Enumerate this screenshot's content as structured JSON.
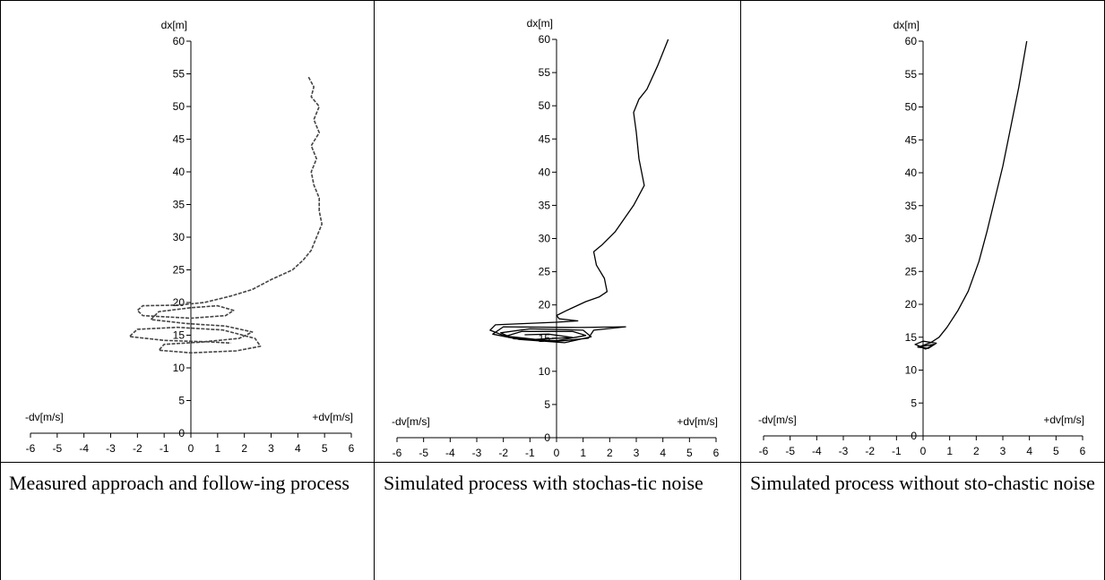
{
  "panels": [
    {
      "caption": "Measured approach and follow-ing process",
      "chart_data": {
        "type": "line",
        "title": "",
        "xlabel_left": "-dv[m/s]",
        "xlabel_right": "+dv[m/s]",
        "ylabel": "dx[m]",
        "xlim": [
          -6,
          6
        ],
        "ylim": [
          0,
          60
        ],
        "xticks": [
          "-6",
          "-5",
          "-4",
          "-3",
          "-2",
          "-1",
          "0",
          "1",
          "2",
          "3",
          "4",
          "5",
          "6"
        ],
        "yticks": [
          "0",
          "5",
          "10",
          "15",
          "20",
          "25",
          "30",
          "35",
          "40",
          "45",
          "50",
          "55",
          "60"
        ],
        "series": [
          {
            "style": "jagged-dashed",
            "points": [
              [
                4.4,
                54.5
              ],
              [
                4.6,
                53.0
              ],
              [
                4.5,
                51.5
              ],
              [
                4.8,
                50.0
              ],
              [
                4.6,
                48.0
              ],
              [
                4.8,
                46.0
              ],
              [
                4.5,
                44.0
              ],
              [
                4.7,
                42.0
              ],
              [
                4.5,
                40.0
              ],
              [
                4.6,
                38.0
              ],
              [
                4.8,
                36.0
              ],
              [
                4.8,
                34.0
              ],
              [
                4.9,
                32.0
              ],
              [
                4.7,
                30.0
              ],
              [
                4.5,
                28.0
              ],
              [
                4.2,
                26.5
              ],
              [
                3.8,
                25.0
              ],
              [
                3.0,
                23.5
              ],
              [
                2.3,
                22.0
              ],
              [
                1.5,
                21.0
              ],
              [
                0.5,
                20.0
              ],
              [
                -0.5,
                19.6
              ],
              [
                -1.8,
                19.5
              ],
              [
                -2.0,
                18.8
              ],
              [
                -1.8,
                18.0
              ],
              [
                0.0,
                17.6
              ],
              [
                1.3,
                18.0
              ],
              [
                1.6,
                18.8
              ],
              [
                1.0,
                19.5
              ],
              [
                0.0,
                19.2
              ],
              [
                -1.2,
                18.6
              ],
              [
                -1.5,
                17.4
              ],
              [
                -0.2,
                16.8
              ],
              [
                1.3,
                16.4
              ],
              [
                2.3,
                15.5
              ],
              [
                1.8,
                14.5
              ],
              [
                0.5,
                14.0
              ],
              [
                -1.0,
                14.2
              ],
              [
                -2.3,
                14.8
              ],
              [
                -2.0,
                15.9
              ],
              [
                -0.5,
                16.2
              ],
              [
                1.2,
                15.8
              ],
              [
                2.4,
                14.5
              ],
              [
                2.6,
                13.3
              ],
              [
                1.7,
                12.6
              ],
              [
                0.0,
                12.3
              ],
              [
                -1.2,
                12.7
              ],
              [
                -1.0,
                13.6
              ],
              [
                0.6,
                14.0
              ],
              [
                1.5,
                13.8
              ]
            ]
          }
        ]
      }
    },
    {
      "caption": "Simulated process with stochas-tic noise",
      "chart_data": {
        "type": "line",
        "title": "",
        "xlabel_left": "-dv[m/s]",
        "xlabel_right": "+dv[m/s]",
        "ylabel": "dx[m]",
        "xlim": [
          -6,
          6
        ],
        "ylim": [
          0,
          60
        ],
        "xticks": [
          "-6",
          "-5",
          "-4",
          "-3",
          "-2",
          "-1",
          "0",
          "1",
          "2",
          "3",
          "4",
          "5",
          "6"
        ],
        "yticks": [
          "0",
          "5",
          "10",
          "15",
          "20",
          "25",
          "30",
          "35",
          "40",
          "45",
          "50",
          "55",
          "60"
        ],
        "series": [
          {
            "style": "solid",
            "points": [
              [
                4.2,
                60.0
              ],
              [
                3.8,
                56.0
              ],
              [
                3.4,
                52.5
              ],
              [
                3.1,
                51.0
              ],
              [
                2.9,
                49.0
              ],
              [
                3.0,
                46.0
              ],
              [
                3.1,
                42.0
              ],
              [
                3.3,
                38.0
              ],
              [
                2.9,
                35.0
              ],
              [
                2.2,
                31.0
              ],
              [
                1.7,
                29.0
              ],
              [
                1.4,
                28.0
              ],
              [
                1.5,
                26.0
              ],
              [
                1.8,
                24.0
              ],
              [
                1.9,
                22.0
              ],
              [
                1.6,
                21.2
              ],
              [
                1.1,
                20.5
              ],
              [
                0.4,
                19.2
              ],
              [
                0.0,
                18.4
              ],
              [
                0.1,
                17.9
              ],
              [
                0.8,
                17.6
              ],
              [
                0.0,
                17.4
              ],
              [
                -2.3,
                17.0
              ],
              [
                -2.5,
                16.2
              ],
              [
                -1.8,
                15.1
              ],
              [
                0.0,
                14.5
              ],
              [
                1.2,
                15.0
              ],
              [
                1.4,
                16.2
              ],
              [
                2.6,
                16.7
              ],
              [
                0.8,
                16.6
              ],
              [
                -2.0,
                16.7
              ],
              [
                -2.4,
                15.6
              ],
              [
                -1.4,
                14.8
              ],
              [
                0.3,
                14.3
              ],
              [
                1.3,
                15.2
              ],
              [
                1.0,
                16.2
              ],
              [
                -1.0,
                16.4
              ],
              [
                -2.1,
                15.8
              ],
              [
                -1.6,
                14.9
              ],
              [
                0.0,
                14.6
              ],
              [
                1.1,
                15.4
              ],
              [
                0.6,
                16.0
              ],
              [
                -1.3,
                16.0
              ],
              [
                -1.9,
                15.3
              ],
              [
                -0.8,
                14.8
              ],
              [
                0.6,
                15.1
              ],
              [
                -0.3,
                15.6
              ],
              [
                -1.2,
                15.5
              ]
            ]
          }
        ]
      }
    },
    {
      "caption": "Simulated process without sto-chastic noise",
      "chart_data": {
        "type": "line",
        "title": "",
        "xlabel_left": "-dv[m/s]",
        "xlabel_right": "+dv[m/s]",
        "ylabel": "dx[m]",
        "xlim": [
          -6,
          6
        ],
        "ylim": [
          0,
          60
        ],
        "xticks": [
          "-6",
          "-5",
          "-4",
          "-3",
          "-2",
          "-1",
          "0",
          "1",
          "2",
          "3",
          "4",
          "5",
          "6"
        ],
        "yticks": [
          "0",
          "5",
          "10",
          "15",
          "20",
          "25",
          "30",
          "35",
          "40",
          "45",
          "50",
          "55",
          "60"
        ],
        "series": [
          {
            "style": "solid",
            "points": [
              [
                3.9,
                60.0
              ],
              [
                3.6,
                53.0
              ],
              [
                3.3,
                47.0
              ],
              [
                3.0,
                41.0
              ],
              [
                2.7,
                36.0
              ],
              [
                2.4,
                31.0
              ],
              [
                2.1,
                26.5
              ],
              [
                1.7,
                22.0
              ],
              [
                1.3,
                19.0
              ],
              [
                0.9,
                16.5
              ],
              [
                0.6,
                15.0
              ],
              [
                0.3,
                14.2
              ],
              [
                -0.1,
                13.6
              ],
              [
                -0.3,
                13.9
              ],
              [
                0.0,
                14.4
              ],
              [
                0.5,
                14.1
              ],
              [
                0.2,
                13.3
              ],
              [
                -0.2,
                13.5
              ],
              [
                0.4,
                13.9
              ],
              [
                0.1,
                13.2
              ],
              [
                -0.2,
                13.7
              ]
            ]
          }
        ]
      }
    }
  ]
}
